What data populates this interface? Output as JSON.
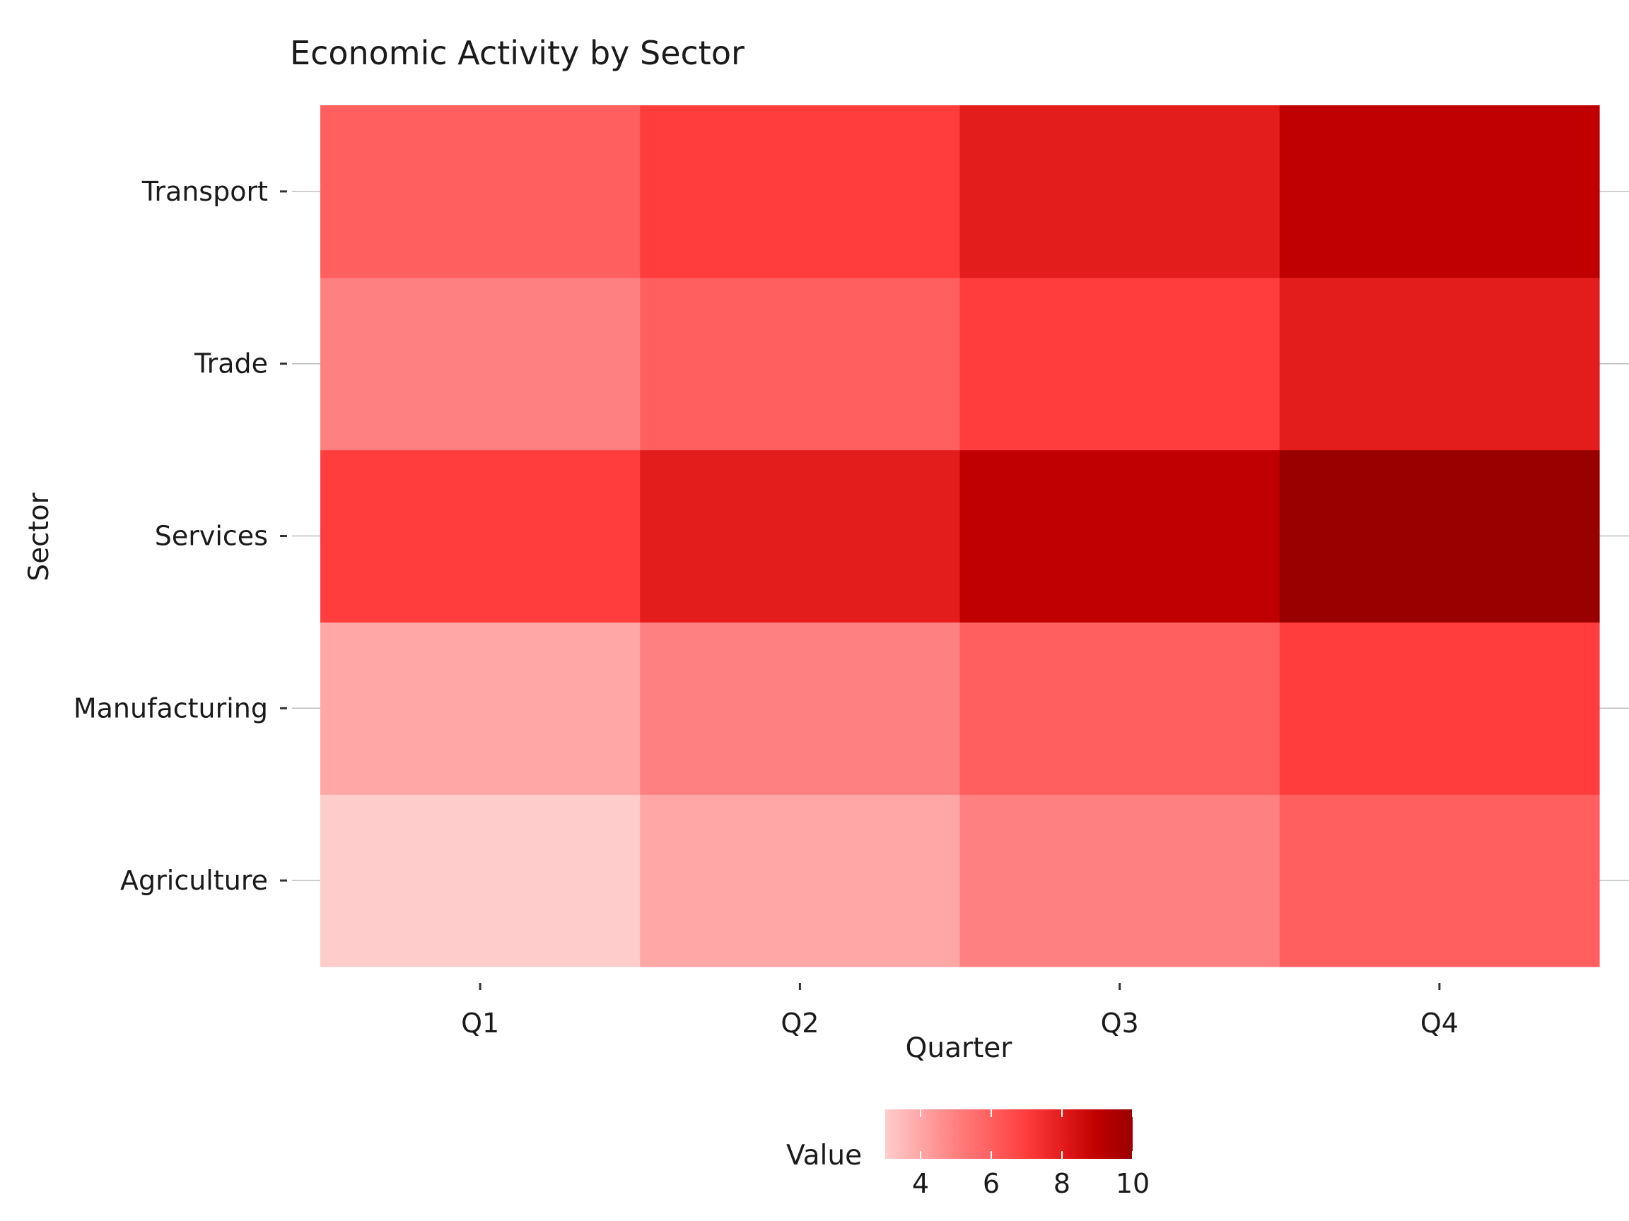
{
  "chart_data": {
    "type": "heatmap",
    "title": "Economic Activity by Sector",
    "xlabel": "Quarter",
    "ylabel": "Sector",
    "x_categories": [
      "Q1",
      "Q2",
      "Q3",
      "Q4"
    ],
    "y_categories": [
      "Agriculture",
      "Manufacturing",
      "Services",
      "Trade",
      "Transport"
    ],
    "values": [
      [
        3,
        4,
        5,
        6
      ],
      [
        4,
        5,
        6,
        7
      ],
      [
        7,
        8,
        9,
        10
      ],
      [
        5,
        6,
        7,
        8
      ],
      [
        6,
        7,
        8,
        9
      ]
    ],
    "legend": {
      "title": "Value",
      "ticks": [
        4,
        6,
        8,
        10
      ],
      "range": [
        3,
        10
      ],
      "placement": "bottom"
    },
    "colors": {
      "3": "#ffcccc",
      "4": "#ffa6a6",
      "5": "#ff8080",
      "6": "#ff5f5f",
      "7": "#ff3d3d",
      "8": "#e31c1c",
      "9": "#c00000",
      "10": "#990000"
    }
  }
}
